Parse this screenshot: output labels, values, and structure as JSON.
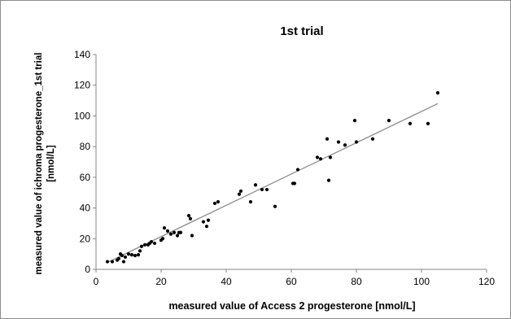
{
  "chart_data": {
    "type": "scatter",
    "title": "1st trial",
    "xlabel": "measured value of Access 2 progesterone [nmol/L]",
    "ylabel_line1": "measured value of ichroma progesterone_1st trial",
    "ylabel_line2": "[nmol/L]",
    "xlim": [
      0,
      120
    ],
    "ylim": [
      0,
      140
    ],
    "xticks": [
      0,
      20,
      40,
      60,
      80,
      100,
      120
    ],
    "yticks": [
      0,
      20,
      40,
      60,
      80,
      100,
      120,
      140
    ],
    "grid": false,
    "legend": "none",
    "point_color": "#000000",
    "trendline_color": "#8c8c8c",
    "trendline": {
      "x": [
        3.5,
        105
      ],
      "y": [
        4.5,
        108
      ]
    },
    "series": [
      {
        "x": [
          3.5,
          5,
          6.5,
          7,
          7.5,
          8,
          8.5,
          9,
          10,
          11,
          12,
          13,
          13.5,
          14,
          15,
          16,
          16.5,
          17,
          18,
          20,
          20.5,
          21,
          22,
          23,
          24,
          25,
          25.5,
          26,
          28.5,
          29,
          29.5,
          33,
          34,
          34.5,
          36.5,
          37.5,
          44,
          44.5,
          47.5,
          49,
          51,
          52.5,
          55,
          60.5,
          61,
          62,
          68,
          69,
          71,
          71.5,
          72,
          74.5,
          76.5,
          79.5,
          80,
          85,
          90,
          96.5,
          102,
          105
        ],
        "y": [
          5,
          5,
          6,
          7,
          10,
          9,
          5,
          8,
          10,
          9.5,
          9,
          9.5,
          12,
          15,
          16,
          16,
          17,
          18,
          17,
          19,
          20,
          27,
          25,
          23,
          24,
          22,
          24,
          24,
          35,
          33,
          22,
          31,
          28,
          32,
          43,
          44,
          49,
          51,
          44,
          55,
          52,
          52,
          41,
          56,
          56,
          65,
          73,
          72,
          85,
          58,
          73,
          83,
          81,
          97,
          83,
          85,
          97,
          95,
          95,
          115
        ]
      }
    ]
  }
}
